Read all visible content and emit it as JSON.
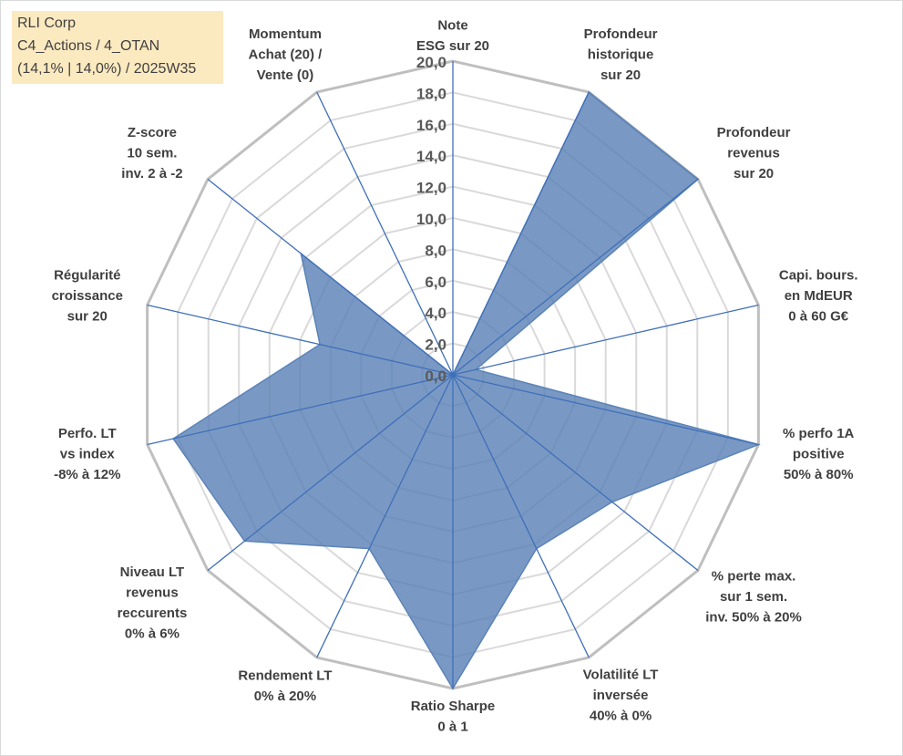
{
  "info": {
    "line1": "RLI Corp",
    "line2": "C4_Actions / 4_OTAN",
    "line3": "(14,1% | 14,0%) / 2025W35"
  },
  "chart_data": {
    "type": "radar",
    "rmin": 0,
    "rmax": 20,
    "tick_step": 2,
    "tick_labels": [
      "0,0",
      "2,0",
      "4,0",
      "6,0",
      "8,0",
      "10,0",
      "12,0",
      "14,0",
      "16,0",
      "18,0",
      "20,0"
    ],
    "grid": true,
    "colors": {
      "fill": "#5b83b7",
      "axis": "#3f6fb9",
      "grid_outer": "#bfbfbf",
      "grid_inner": "#d9d9d9"
    },
    "axes": [
      {
        "label": [
          "Note",
          "ESG sur 20"
        ],
        "value": 0
      },
      {
        "label": [
          "Profondeur",
          "historique",
          "sur 20"
        ],
        "value": 20
      },
      {
        "label": [
          "Profondeur",
          "revenus",
          "sur 20"
        ],
        "value": 20
      },
      {
        "label": [
          "Capi. bours.",
          "en MdEUR",
          "0 à 60 G€"
        ],
        "value": 1.5
      },
      {
        "label": [
          "% perfo 1A",
          "positive",
          "50% à 80%"
        ],
        "value": 20
      },
      {
        "label": [
          "% perte max.",
          "sur 1 sem.",
          "inv. 50% à 20%"
        ],
        "value": 13
      },
      {
        "label": [
          "Volatilité LT",
          "inversée",
          "40% à 0%"
        ],
        "value": 12.3
      },
      {
        "label": [
          "Ratio Sharpe",
          "0 à 1"
        ],
        "value": 20
      },
      {
        "label": [
          "Rendement LT",
          "0% à 20%"
        ],
        "value": 12.3
      },
      {
        "label": [
          "Niveau LT",
          "revenus",
          "reccurents",
          "0% à 6%"
        ],
        "value": 17
      },
      {
        "label": [
          "Perfo. LT",
          "vs index",
          "-8% à 12%"
        ],
        "value": 18.3
      },
      {
        "label": [
          "Régularité",
          "croissance",
          "sur 20"
        ],
        "value": 8.7
      },
      {
        "label": [
          "Z-score",
          "10 sem.",
          "inv. 2 à -2"
        ],
        "value": 12.4
      },
      {
        "label": [
          "Momentum",
          "Achat (20) /",
          "Vente (0)"
        ],
        "value": 0
      }
    ]
  }
}
